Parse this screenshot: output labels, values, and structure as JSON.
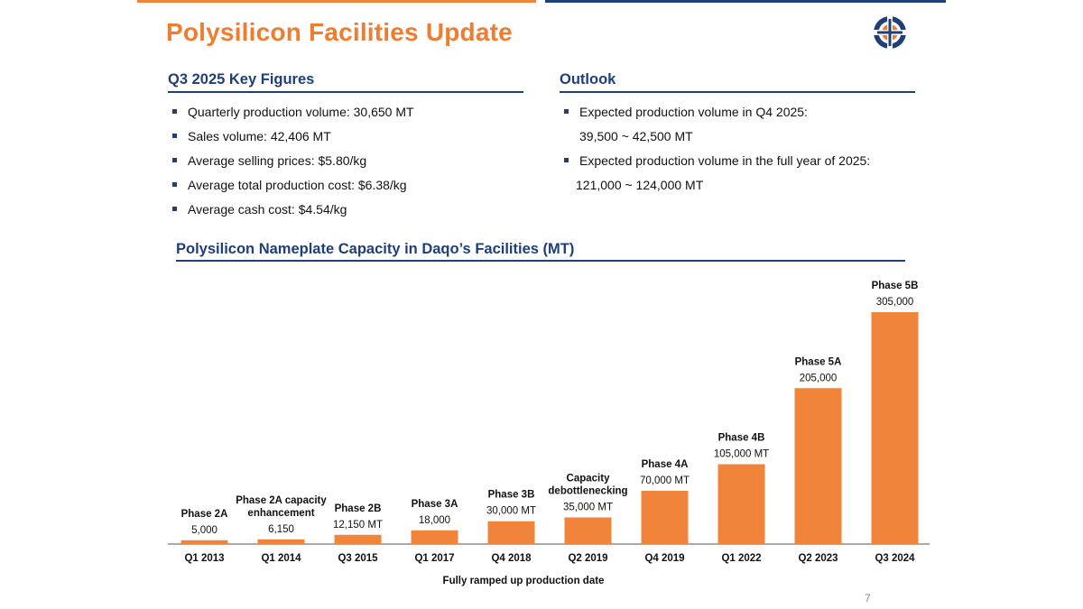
{
  "slide": {
    "title": "Polysilicon Facilities Update",
    "page_number": "7",
    "logo_icon": "daqo-logo-icon",
    "colors": {
      "accent_orange": "#ef7d31",
      "navy": "#1f3f7a",
      "bar": "#f0843a"
    }
  },
  "key_figures": {
    "heading": "Q3 2025 Key Figures",
    "items": [
      "Quarterly production volume: 30,650 MT",
      "Sales volume: 42,406 MT",
      "Average selling prices: $5.80/kg",
      "Average total production cost: $6.38/kg",
      "Average cash cost: $4.54/kg"
    ]
  },
  "outlook": {
    "heading": "Outlook",
    "line1": "Expected production volume in Q4 2025:",
    "line1_value": "39,500 ~ 42,500 MT",
    "line2": "Expected production volume in the full year of 2025:",
    "line2_value": "121,000 ~ 124,000 MT"
  },
  "chart_data": {
    "type": "bar",
    "title": "Polysilicon Nameplate Capacity in Daqo’s Facilities (MT)",
    "xlabel": "Fully ramped up production date",
    "ylabel": "",
    "categories": [
      "Q1 2013",
      "Q1 2014",
      "Q3 2015",
      "Q1 2017",
      "Q4 2018",
      "Q2 2019",
      "Q4 2019",
      "Q1 2022",
      "Q2 2023",
      "Q3 2024"
    ],
    "values": [
      5000,
      6150,
      12150,
      18000,
      30000,
      35000,
      70000,
      105000,
      205000,
      305000
    ],
    "value_labels": [
      "5,000",
      "6,150",
      "12,150 MT",
      "18,000",
      "30,000 MT",
      "35,000 MT",
      "70,000 MT",
      "105,000 MT",
      "205,000",
      "305,000"
    ],
    "phase_labels": [
      [
        "Phase 2A"
      ],
      [
        "Phase 2A capacity",
        "enhancement"
      ],
      [
        "Phase 2B"
      ],
      [
        "Phase 3A"
      ],
      [
        "Phase 3B"
      ],
      [
        "Capacity",
        "debottlenecking"
      ],
      [
        "Phase 4A"
      ],
      [
        "Phase 4B"
      ],
      [
        "Phase 5A"
      ],
      [
        "Phase 5B"
      ]
    ],
    "ylim": [
      0,
      305000
    ],
    "grid": false,
    "legend": "none",
    "bar_color": "#f0843a"
  }
}
